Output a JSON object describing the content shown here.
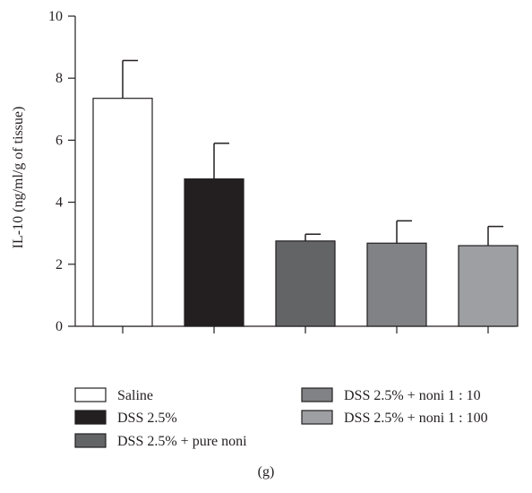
{
  "chart_data": {
    "type": "bar",
    "title": "",
    "xlabel": "",
    "ylabel": "IL-10 (ng/ml/g of tissue)",
    "ylim": [
      0,
      10
    ],
    "yticks": [
      0,
      2,
      4,
      6,
      8,
      10
    ],
    "grid": false,
    "legend_position": "bottom",
    "panel_label": "(g)",
    "categories": [
      "Saline",
      "DSS 2.5%",
      "DSS 2.5% + pure noni",
      "DSS 2.5% + noni 1 : 10",
      "DSS 2.5% + noni 1 : 100"
    ],
    "values": [
      7.35,
      4.75,
      2.75,
      2.68,
      2.6
    ],
    "errors": [
      1.22,
      1.15,
      0.22,
      0.72,
      0.62
    ],
    "colors": [
      "#ffffff",
      "#231f20",
      "#636466",
      "#808285",
      "#9d9fa2"
    ]
  }
}
